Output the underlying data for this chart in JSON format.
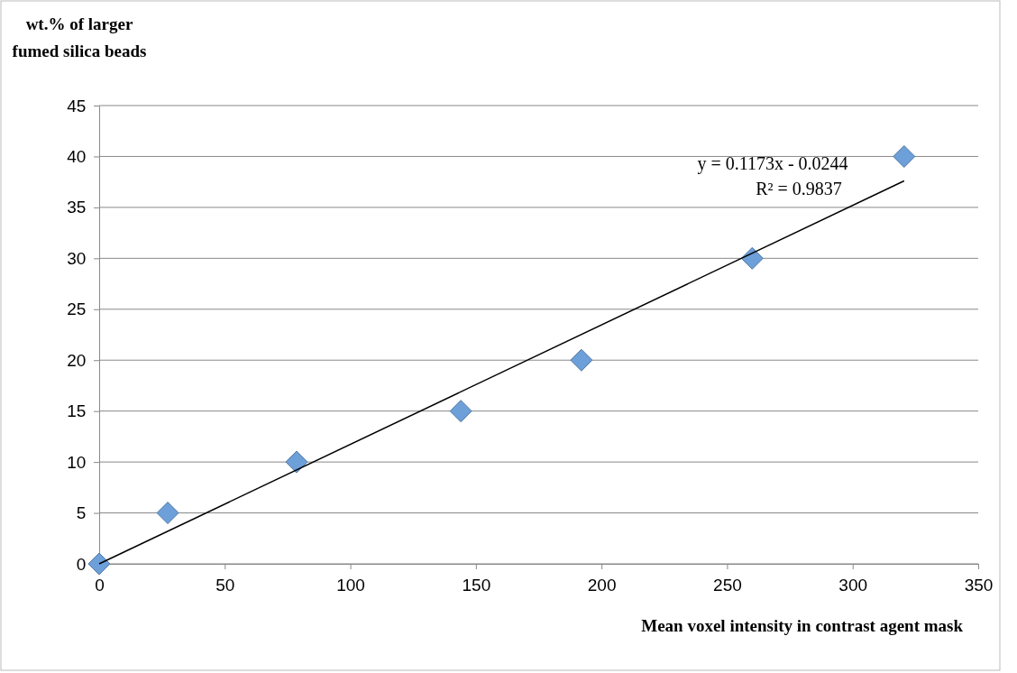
{
  "chart_data": {
    "type": "scatter",
    "ylabel": "wt.% of larger\nfumed silica beads",
    "xlabel": "Mean voxel intensity in contrast agent mask",
    "series": [
      {
        "color": "#6d9fd9",
        "x": [
          0,
          27.3,
          78.6,
          144,
          192,
          260,
          320.5
        ],
        "values": [
          0,
          5,
          10,
          15,
          20,
          30,
          40
        ],
        "marker": "diamond"
      },
      {
        "type": "line",
        "color": "#000000",
        "x": [
          0,
          320.5
        ],
        "values": [
          0,
          37.6
        ],
        "marker": "none"
      }
    ],
    "xlim": [
      0,
      350
    ],
    "xticks": [
      0,
      50,
      100,
      150,
      200,
      250,
      300,
      350
    ],
    "ylim": [
      0,
      45
    ],
    "yticks": [
      0,
      5,
      10,
      15,
      20,
      25,
      30,
      35,
      40,
      45
    ],
    "grid": "y",
    "annotations": [
      "y = 0.1173x - 0.0244\nR² = 0.9837"
    ]
  }
}
